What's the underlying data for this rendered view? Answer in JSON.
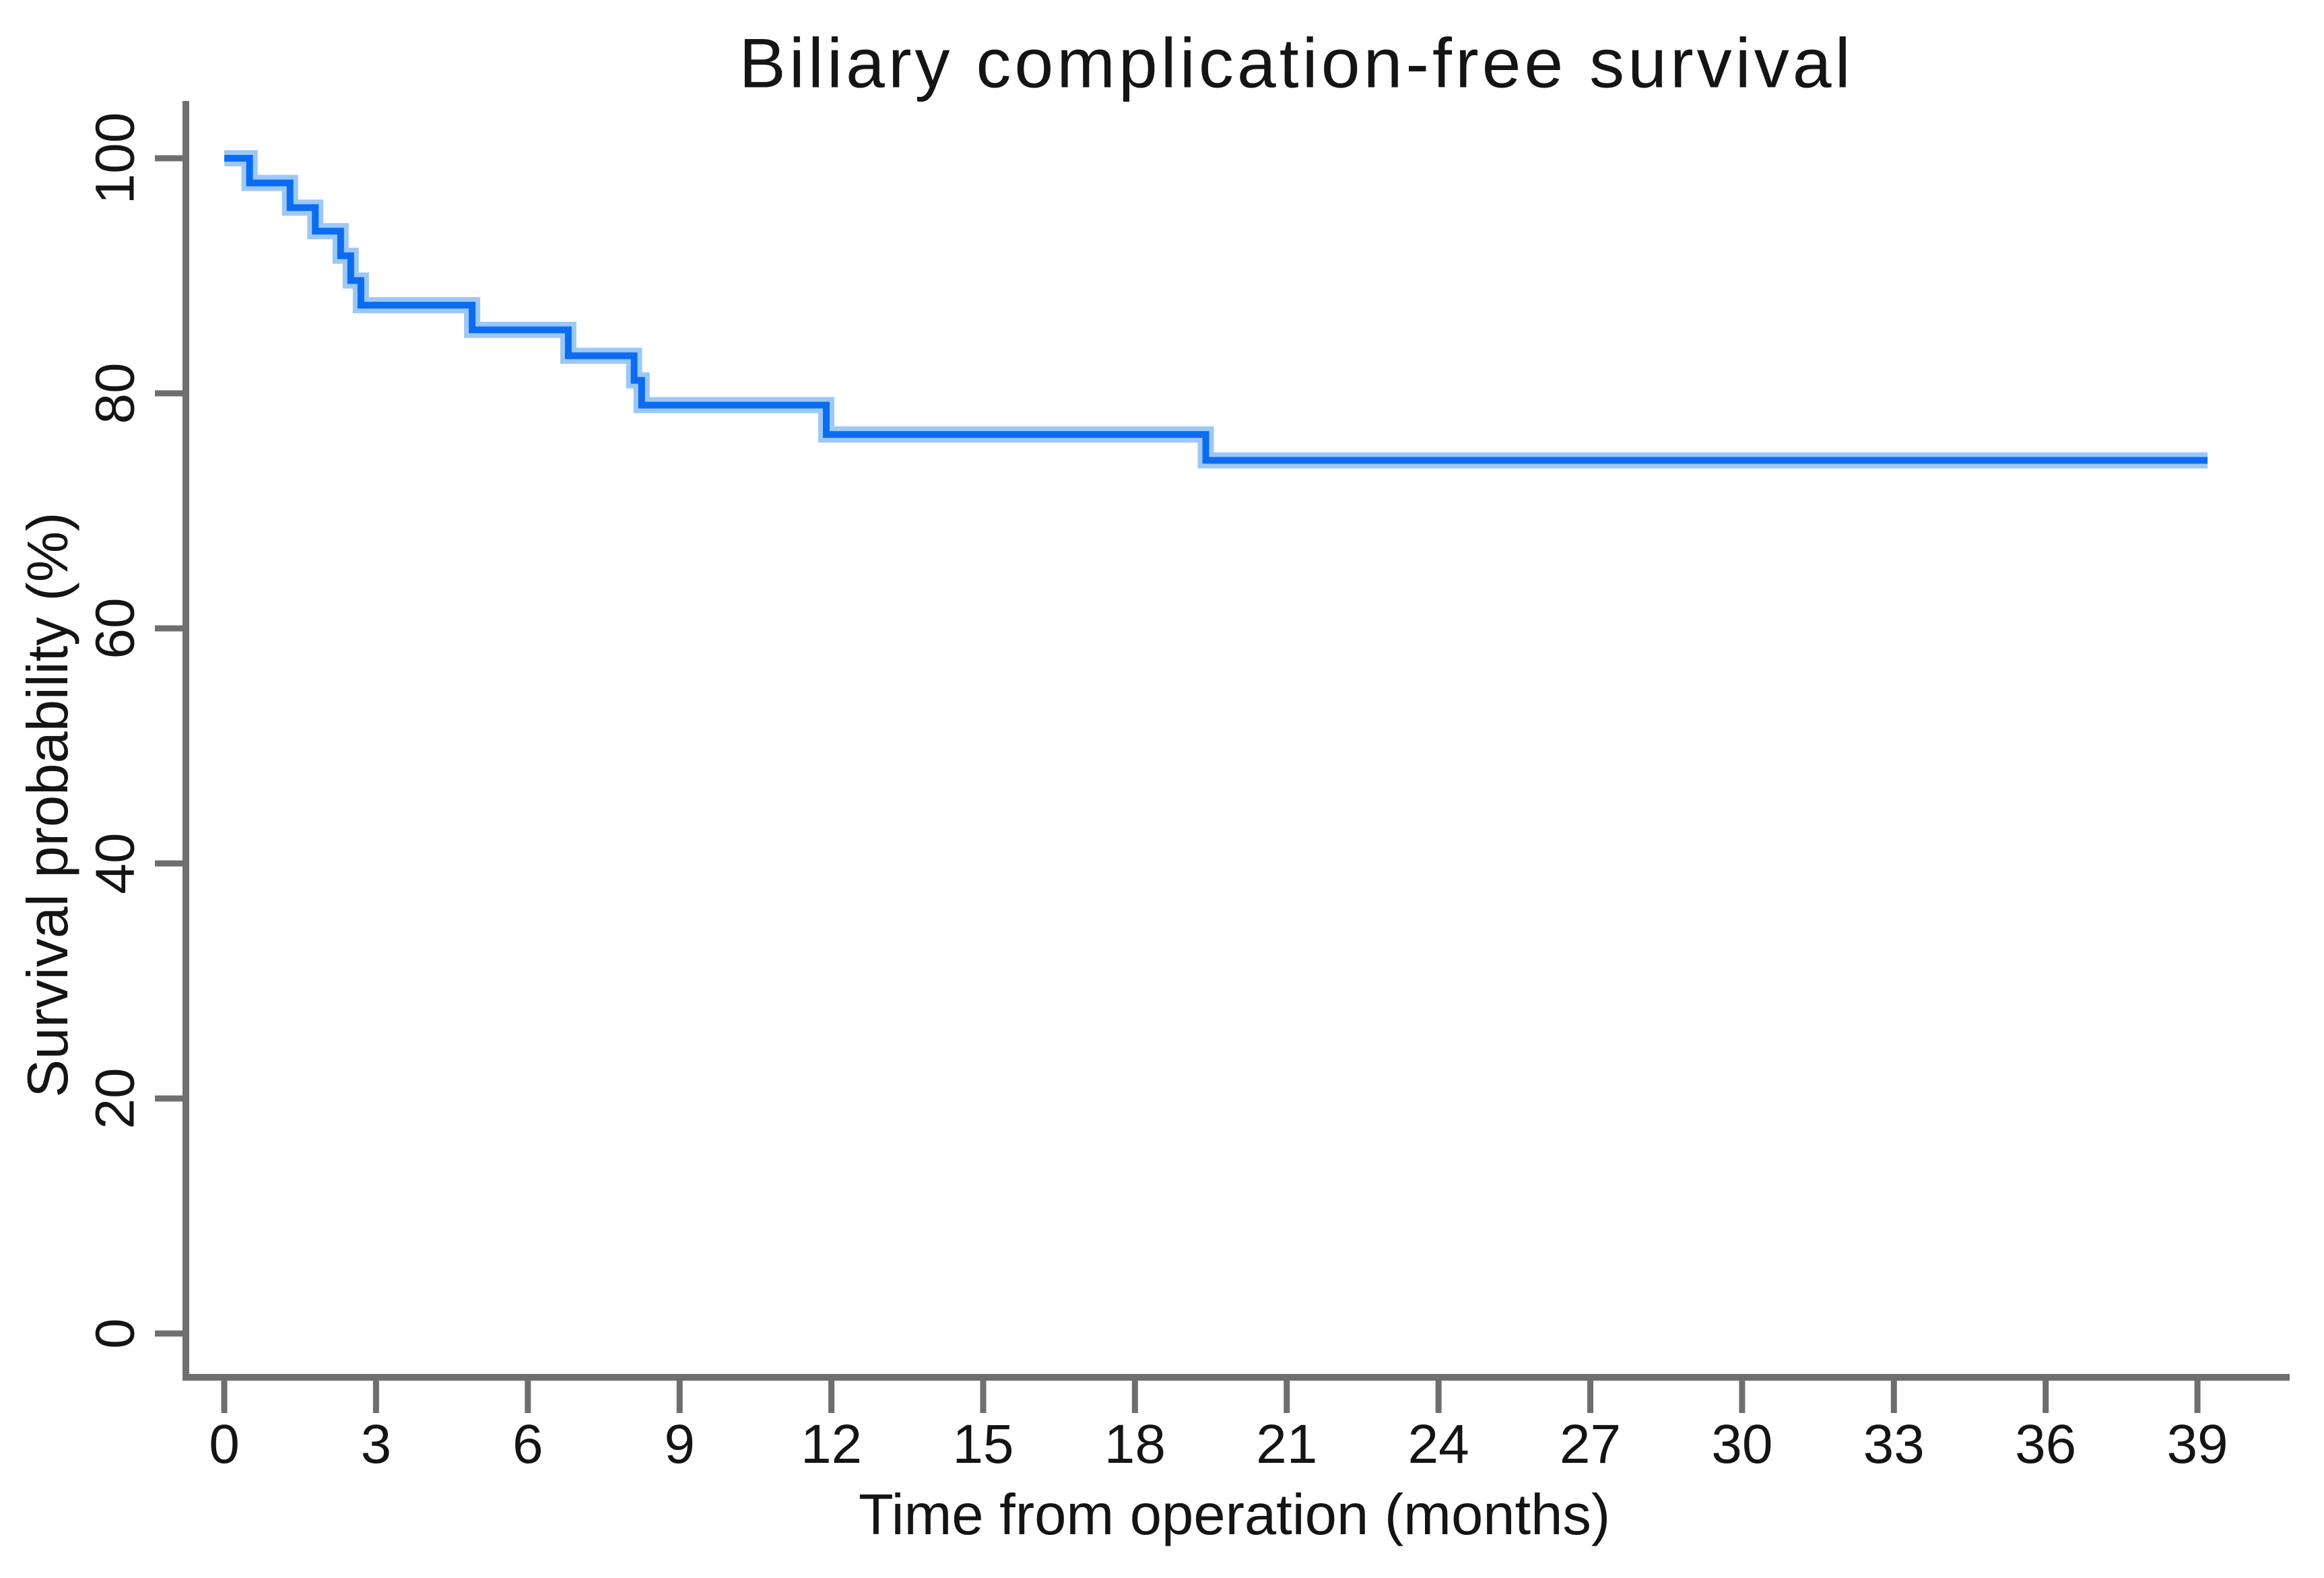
{
  "chart_data": {
    "type": "line",
    "subtype": "kaplan_meier_step_curve",
    "title": "Biliary complication-free survival",
    "xlabel": "Time from operation (months)",
    "ylabel": "Survival probability (%)",
    "x_ticks": [
      0,
      3,
      6,
      9,
      12,
      15,
      18,
      21,
      24,
      27,
      30,
      33,
      36,
      39
    ],
    "y_ticks": [
      0,
      20,
      40,
      60,
      80,
      100
    ],
    "xlim": [
      0,
      40.8
    ],
    "ylim": [
      0,
      100
    ],
    "grid": false,
    "legend": null,
    "colors": {
      "curve": "#0b6cf0",
      "curve_halo": "#9cc8f7",
      "axis": "#6e6e6e",
      "text": "#141414"
    },
    "series": [
      {
        "name": "Biliary complication-free survival",
        "start": {
          "time": 0,
          "survival": 100
        },
        "end_time": 39.2,
        "steps": [
          {
            "time": 0.5,
            "survival": 97.9
          },
          {
            "time": 1.3,
            "survival": 95.8
          },
          {
            "time": 1.8,
            "survival": 93.8
          },
          {
            "time": 2.3,
            "survival": 91.7
          },
          {
            "time": 2.5,
            "survival": 89.6
          },
          {
            "time": 2.7,
            "survival": 87.5
          },
          {
            "time": 4.9,
            "survival": 85.4
          },
          {
            "time": 6.8,
            "survival": 83.2
          },
          {
            "time": 8.1,
            "survival": 81.1
          },
          {
            "time": 8.25,
            "survival": 79.0
          },
          {
            "time": 11.9,
            "survival": 76.5
          },
          {
            "time": 19.4,
            "survival": 74.3
          }
        ]
      }
    ]
  }
}
